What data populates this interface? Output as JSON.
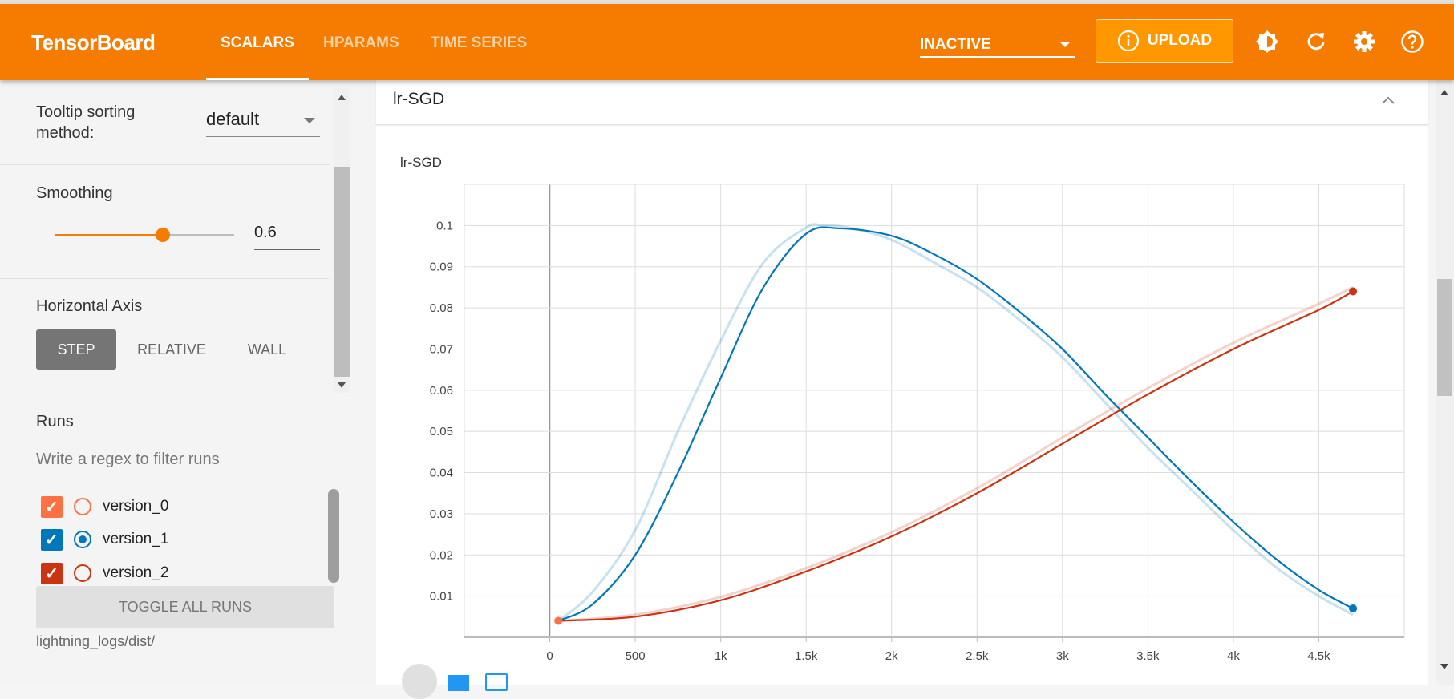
{
  "header": {
    "title": "TensorBoard",
    "tabs": [
      {
        "label": "SCALARS",
        "active": true
      },
      {
        "label": "HPARAMS"
      },
      {
        "label": "TIME SERIES"
      }
    ],
    "status_select": "INACTIVE",
    "upload_label": "UPLOAD",
    "icons": [
      "theme-toggle-icon",
      "reload-icon",
      "settings-icon",
      "help-icon"
    ],
    "color": "#f57c00"
  },
  "sidebar": {
    "tooltip_sorting_label": "Tooltip sorting method:",
    "tooltip_sorting_value": "default",
    "smoothing_label": "Smoothing",
    "smoothing_value": "0.6",
    "smoothing_fraction": 0.6,
    "horizontal_axis_label": "Horizontal Axis",
    "axis_options": [
      "STEP",
      "RELATIVE",
      "WALL"
    ],
    "axis_selected": "STEP",
    "runs_label": "Runs",
    "filter_placeholder": "Write a regex to filter runs",
    "runs": [
      {
        "name": "version_0",
        "checked": true,
        "color": "#ff7043"
      },
      {
        "name": "version_1",
        "checked": true,
        "selected": true,
        "color": "#0077bb"
      },
      {
        "name": "version_2",
        "checked": true,
        "color": "#cc3311"
      }
    ],
    "toggle_all_label": "TOGGLE ALL RUNS",
    "logdir": "lightning_logs/dist/"
  },
  "card": {
    "title": "lr-SGD"
  },
  "chart_data": {
    "type": "line",
    "title": "lr-SGD",
    "xlim": [
      -500,
      5000
    ],
    "ylim": [
      0,
      0.11
    ],
    "x_ticks": [
      "0",
      "500",
      "1k",
      "1.5k",
      "2k",
      "2.5k",
      "3k",
      "3.5k",
      "4k",
      "4.5k"
    ],
    "x_tick_values": [
      0,
      500,
      1000,
      1500,
      2000,
      2500,
      3000,
      3500,
      4000,
      4500
    ],
    "y_ticks": [
      "0.01",
      "0.02",
      "0.03",
      "0.04",
      "0.05",
      "0.06",
      "0.07",
      "0.08",
      "0.09",
      "0.1"
    ],
    "y_tick_values": [
      0.01,
      0.02,
      0.03,
      0.04,
      0.05,
      0.06,
      0.07,
      0.08,
      0.09,
      0.1
    ],
    "grid": true,
    "series": [
      {
        "name": "version_0",
        "color": "#ff7043",
        "smoothed": [
          [
            50,
            0.004
          ]
        ],
        "raw": [
          [
            50,
            0.004
          ]
        ]
      },
      {
        "name": "version_1",
        "color": "#0077bb",
        "smoothed": [
          [
            50,
            0.004
          ],
          [
            250,
            0.008
          ],
          [
            500,
            0.02
          ],
          [
            750,
            0.04
          ],
          [
            1000,
            0.063
          ],
          [
            1250,
            0.085
          ],
          [
            1500,
            0.098
          ],
          [
            1700,
            0.0993
          ],
          [
            2000,
            0.0975
          ],
          [
            2250,
            0.093
          ],
          [
            2500,
            0.087
          ],
          [
            2750,
            0.079
          ],
          [
            3000,
            0.07
          ],
          [
            3250,
            0.059
          ],
          [
            3500,
            0.0485
          ],
          [
            3750,
            0.038
          ],
          [
            4000,
            0.028
          ],
          [
            4250,
            0.019
          ],
          [
            4500,
            0.0115
          ],
          [
            4700,
            0.007
          ]
        ],
        "raw": [
          [
            50,
            0.004
          ],
          [
            250,
            0.011
          ],
          [
            500,
            0.026
          ],
          [
            750,
            0.05
          ],
          [
            1000,
            0.072
          ],
          [
            1250,
            0.091
          ],
          [
            1500,
            0.0995
          ],
          [
            1600,
            0.1
          ],
          [
            1750,
            0.0995
          ],
          [
            2000,
            0.0965
          ],
          [
            2250,
            0.091
          ],
          [
            2500,
            0.085
          ],
          [
            2750,
            0.077
          ],
          [
            3000,
            0.068
          ],
          [
            3250,
            0.057
          ],
          [
            3500,
            0.046
          ],
          [
            3750,
            0.036
          ],
          [
            4000,
            0.026
          ],
          [
            4250,
            0.017
          ],
          [
            4500,
            0.01
          ],
          [
            4700,
            0.0055
          ]
        ]
      },
      {
        "name": "version_2",
        "color": "#cc3311",
        "smoothed": [
          [
            50,
            0.004
          ],
          [
            500,
            0.005
          ],
          [
            1000,
            0.009
          ],
          [
            1500,
            0.016
          ],
          [
            2000,
            0.0245
          ],
          [
            2500,
            0.035
          ],
          [
            3000,
            0.047
          ],
          [
            3500,
            0.059
          ],
          [
            4000,
            0.07
          ],
          [
            4500,
            0.0795
          ],
          [
            4700,
            0.084
          ]
        ],
        "raw": [
          [
            50,
            0.004
          ],
          [
            500,
            0.0055
          ],
          [
            1000,
            0.0098
          ],
          [
            1500,
            0.0168
          ],
          [
            2000,
            0.0255
          ],
          [
            2500,
            0.0362
          ],
          [
            3000,
            0.0485
          ],
          [
            3500,
            0.0605
          ],
          [
            4000,
            0.0715
          ],
          [
            4500,
            0.081
          ],
          [
            4700,
            0.085
          ]
        ]
      }
    ]
  }
}
